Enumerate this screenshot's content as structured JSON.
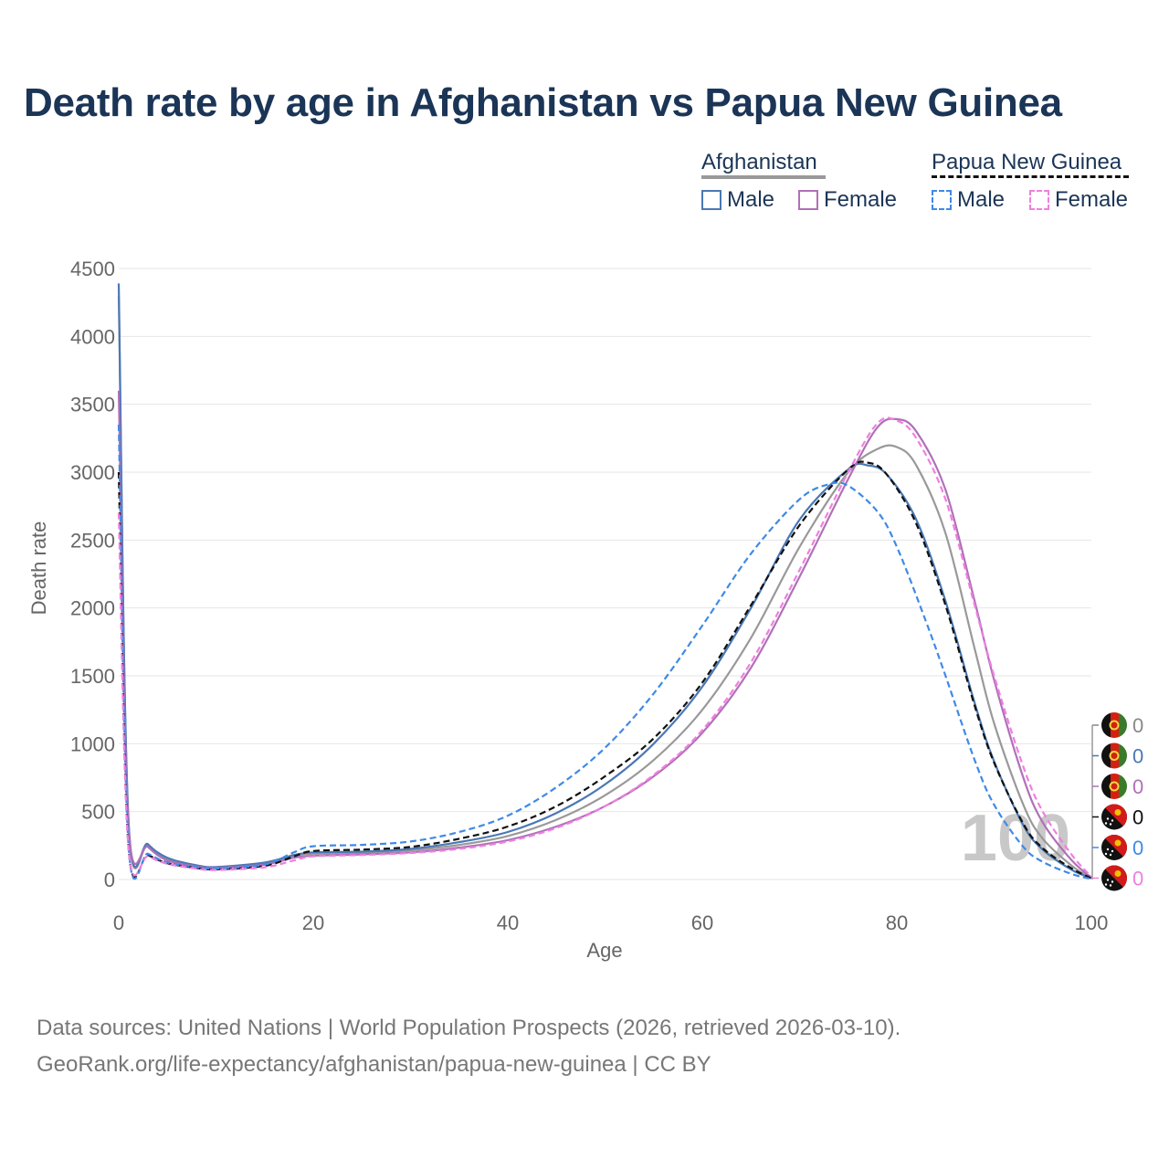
{
  "title": "Death rate by age in Afghanistan vs Papua New Guinea",
  "legend": {
    "groups": [
      {
        "name": "Afghanistan",
        "style": "solid",
        "underline_color": "#999999",
        "items": [
          {
            "label": "Male",
            "color": "#4a78b5"
          },
          {
            "label": "Female",
            "color": "#b070b8"
          }
        ]
      },
      {
        "name": "Papua New Guinea",
        "style": "dashed",
        "underline_color": "#111111",
        "items": [
          {
            "label": "Male",
            "color": "#3f8ae6"
          },
          {
            "label": "Female",
            "color": "#f07fe0"
          }
        ]
      }
    ]
  },
  "watermark_year": "100",
  "end_labels": [
    {
      "value": "0",
      "color": "#888888",
      "flag": "afghanistan-flag-icon"
    },
    {
      "value": "0",
      "color": "#4a78b5",
      "flag": "afghanistan-flag-icon"
    },
    {
      "value": "0",
      "color": "#b070b8",
      "flag": "afghanistan-flag-icon"
    },
    {
      "value": "0",
      "color": "#111111",
      "flag": "papua-new-guinea-flag-icon"
    },
    {
      "value": "0",
      "color": "#3f8ae6",
      "flag": "papua-new-guinea-flag-icon"
    },
    {
      "value": "0",
      "color": "#f07fe0",
      "flag": "papua-new-guinea-flag-icon"
    }
  ],
  "source": {
    "line1": "Data sources: United Nations | World Population Prospects (2026, retrieved 2026-03-10).",
    "line2": "GeoRank.org/life-expectancy/afghanistan/papua-new-guinea | CC BY"
  },
  "chart_data": {
    "type": "line",
    "title": "Death rate by age in Afghanistan vs Papua New Guinea",
    "xlabel": "Age",
    "ylabel": "Death rate",
    "xlim": [
      0,
      100
    ],
    "ylim": [
      0,
      4500
    ],
    "xticks": [
      0,
      20,
      40,
      60,
      80,
      100
    ],
    "yticks": [
      0,
      500,
      1000,
      1500,
      2000,
      2500,
      3000,
      3500,
      4000,
      4500
    ],
    "grid": true,
    "series": [
      {
        "name": "Afghanistan (total)",
        "color": "#999999",
        "dash": "solid",
        "points": [
          [
            0,
            4300
          ],
          [
            1,
            420
          ],
          [
            3,
            250
          ],
          [
            5,
            150
          ],
          [
            8,
            100
          ],
          [
            10,
            90
          ],
          [
            15,
            120
          ],
          [
            18,
            175
          ],
          [
            20,
            190
          ],
          [
            25,
            195
          ],
          [
            30,
            215
          ],
          [
            35,
            255
          ],
          [
            40,
            320
          ],
          [
            45,
            440
          ],
          [
            50,
            620
          ],
          [
            55,
            880
          ],
          [
            60,
            1250
          ],
          [
            65,
            1780
          ],
          [
            70,
            2450
          ],
          [
            75,
            3000
          ],
          [
            78,
            3170
          ],
          [
            80,
            3185
          ],
          [
            82,
            3050
          ],
          [
            85,
            2550
          ],
          [
            88,
            1700
          ],
          [
            90,
            1150
          ],
          [
            93,
            550
          ],
          [
            95,
            300
          ],
          [
            98,
            100
          ],
          [
            100,
            10
          ]
        ]
      },
      {
        "name": "Afghanistan Male",
        "color": "#4a78b5",
        "dash": "solid",
        "points": [
          [
            0,
            4390
          ],
          [
            1,
            440
          ],
          [
            3,
            260
          ],
          [
            5,
            160
          ],
          [
            8,
            105
          ],
          [
            10,
            92
          ],
          [
            15,
            125
          ],
          [
            18,
            180
          ],
          [
            20,
            200
          ],
          [
            25,
            205
          ],
          [
            30,
            225
          ],
          [
            35,
            275
          ],
          [
            40,
            350
          ],
          [
            45,
            490
          ],
          [
            50,
            700
          ],
          [
            55,
            1000
          ],
          [
            60,
            1420
          ],
          [
            65,
            2000
          ],
          [
            70,
            2650
          ],
          [
            75,
            3020
          ],
          [
            77,
            3050
          ],
          [
            79,
            2980
          ],
          [
            82,
            2650
          ],
          [
            85,
            2050
          ],
          [
            88,
            1300
          ],
          [
            90,
            870
          ],
          [
            93,
            400
          ],
          [
            95,
            220
          ],
          [
            98,
            70
          ],
          [
            100,
            10
          ]
        ]
      },
      {
        "name": "Afghanistan Female",
        "color": "#b070b8",
        "dash": "solid",
        "points": [
          [
            0,
            3600
          ],
          [
            1,
            400
          ],
          [
            3,
            240
          ],
          [
            5,
            140
          ],
          [
            8,
            95
          ],
          [
            10,
            85
          ],
          [
            15,
            110
          ],
          [
            18,
            160
          ],
          [
            20,
            175
          ],
          [
            25,
            185
          ],
          [
            30,
            200
          ],
          [
            35,
            235
          ],
          [
            40,
            290
          ],
          [
            45,
            390
          ],
          [
            50,
            540
          ],
          [
            55,
            760
          ],
          [
            60,
            1080
          ],
          [
            65,
            1560
          ],
          [
            70,
            2230
          ],
          [
            75,
            2950
          ],
          [
            78,
            3330
          ],
          [
            80,
            3390
          ],
          [
            82,
            3300
          ],
          [
            85,
            2870
          ],
          [
            88,
            2050
          ],
          [
            90,
            1470
          ],
          [
            93,
            750
          ],
          [
            95,
            420
          ],
          [
            98,
            140
          ],
          [
            100,
            15
          ]
        ]
      },
      {
        "name": "Papua New Guinea (total)",
        "color": "#111111",
        "dash": "dashed",
        "points": [
          [
            0,
            3000
          ],
          [
            1,
            240
          ],
          [
            3,
            180
          ],
          [
            5,
            120
          ],
          [
            8,
            85
          ],
          [
            10,
            75
          ],
          [
            15,
            100
          ],
          [
            18,
            170
          ],
          [
            20,
            210
          ],
          [
            25,
            220
          ],
          [
            30,
            240
          ],
          [
            35,
            300
          ],
          [
            40,
            390
          ],
          [
            45,
            540
          ],
          [
            50,
            760
          ],
          [
            55,
            1040
          ],
          [
            60,
            1450
          ],
          [
            65,
            2020
          ],
          [
            70,
            2610
          ],
          [
            75,
            3020
          ],
          [
            77,
            3070
          ],
          [
            79,
            2980
          ],
          [
            82,
            2620
          ],
          [
            85,
            2020
          ],
          [
            88,
            1280
          ],
          [
            90,
            860
          ],
          [
            93,
            410
          ],
          [
            95,
            230
          ],
          [
            98,
            80
          ],
          [
            100,
            10
          ]
        ]
      },
      {
        "name": "Papua New Guinea Male",
        "color": "#3f8ae6",
        "dash": "dashed",
        "points": [
          [
            0,
            3350
          ],
          [
            1,
            250
          ],
          [
            3,
            190
          ],
          [
            5,
            125
          ],
          [
            8,
            90
          ],
          [
            10,
            80
          ],
          [
            15,
            110
          ],
          [
            18,
            200
          ],
          [
            20,
            245
          ],
          [
            25,
            255
          ],
          [
            30,
            280
          ],
          [
            35,
            350
          ],
          [
            40,
            470
          ],
          [
            45,
            680
          ],
          [
            50,
            970
          ],
          [
            55,
            1370
          ],
          [
            60,
            1870
          ],
          [
            65,
            2400
          ],
          [
            70,
            2800
          ],
          [
            73,
            2910
          ],
          [
            75,
            2900
          ],
          [
            78,
            2710
          ],
          [
            80,
            2450
          ],
          [
            83,
            1900
          ],
          [
            85,
            1500
          ],
          [
            88,
            880
          ],
          [
            90,
            550
          ],
          [
            93,
            240
          ],
          [
            95,
            130
          ],
          [
            98,
            40
          ],
          [
            100,
            5
          ]
        ]
      },
      {
        "name": "Papua New Guinea Female",
        "color": "#f07fe0",
        "dash": "dashed",
        "points": [
          [
            0,
            2700
          ],
          [
            1,
            230
          ],
          [
            3,
            170
          ],
          [
            5,
            115
          ],
          [
            8,
            80
          ],
          [
            10,
            70
          ],
          [
            15,
            90
          ],
          [
            18,
            140
          ],
          [
            20,
            170
          ],
          [
            25,
            180
          ],
          [
            30,
            195
          ],
          [
            35,
            225
          ],
          [
            40,
            280
          ],
          [
            45,
            380
          ],
          [
            50,
            540
          ],
          [
            55,
            770
          ],
          [
            60,
            1100
          ],
          [
            65,
            1600
          ],
          [
            70,
            2280
          ],
          [
            75,
            3000
          ],
          [
            78,
            3360
          ],
          [
            80,
            3380
          ],
          [
            82,
            3250
          ],
          [
            85,
            2800
          ],
          [
            88,
            2020
          ],
          [
            90,
            1500
          ],
          [
            93,
            830
          ],
          [
            95,
            500
          ],
          [
            98,
            180
          ],
          [
            100,
            20
          ]
        ]
      }
    ]
  }
}
